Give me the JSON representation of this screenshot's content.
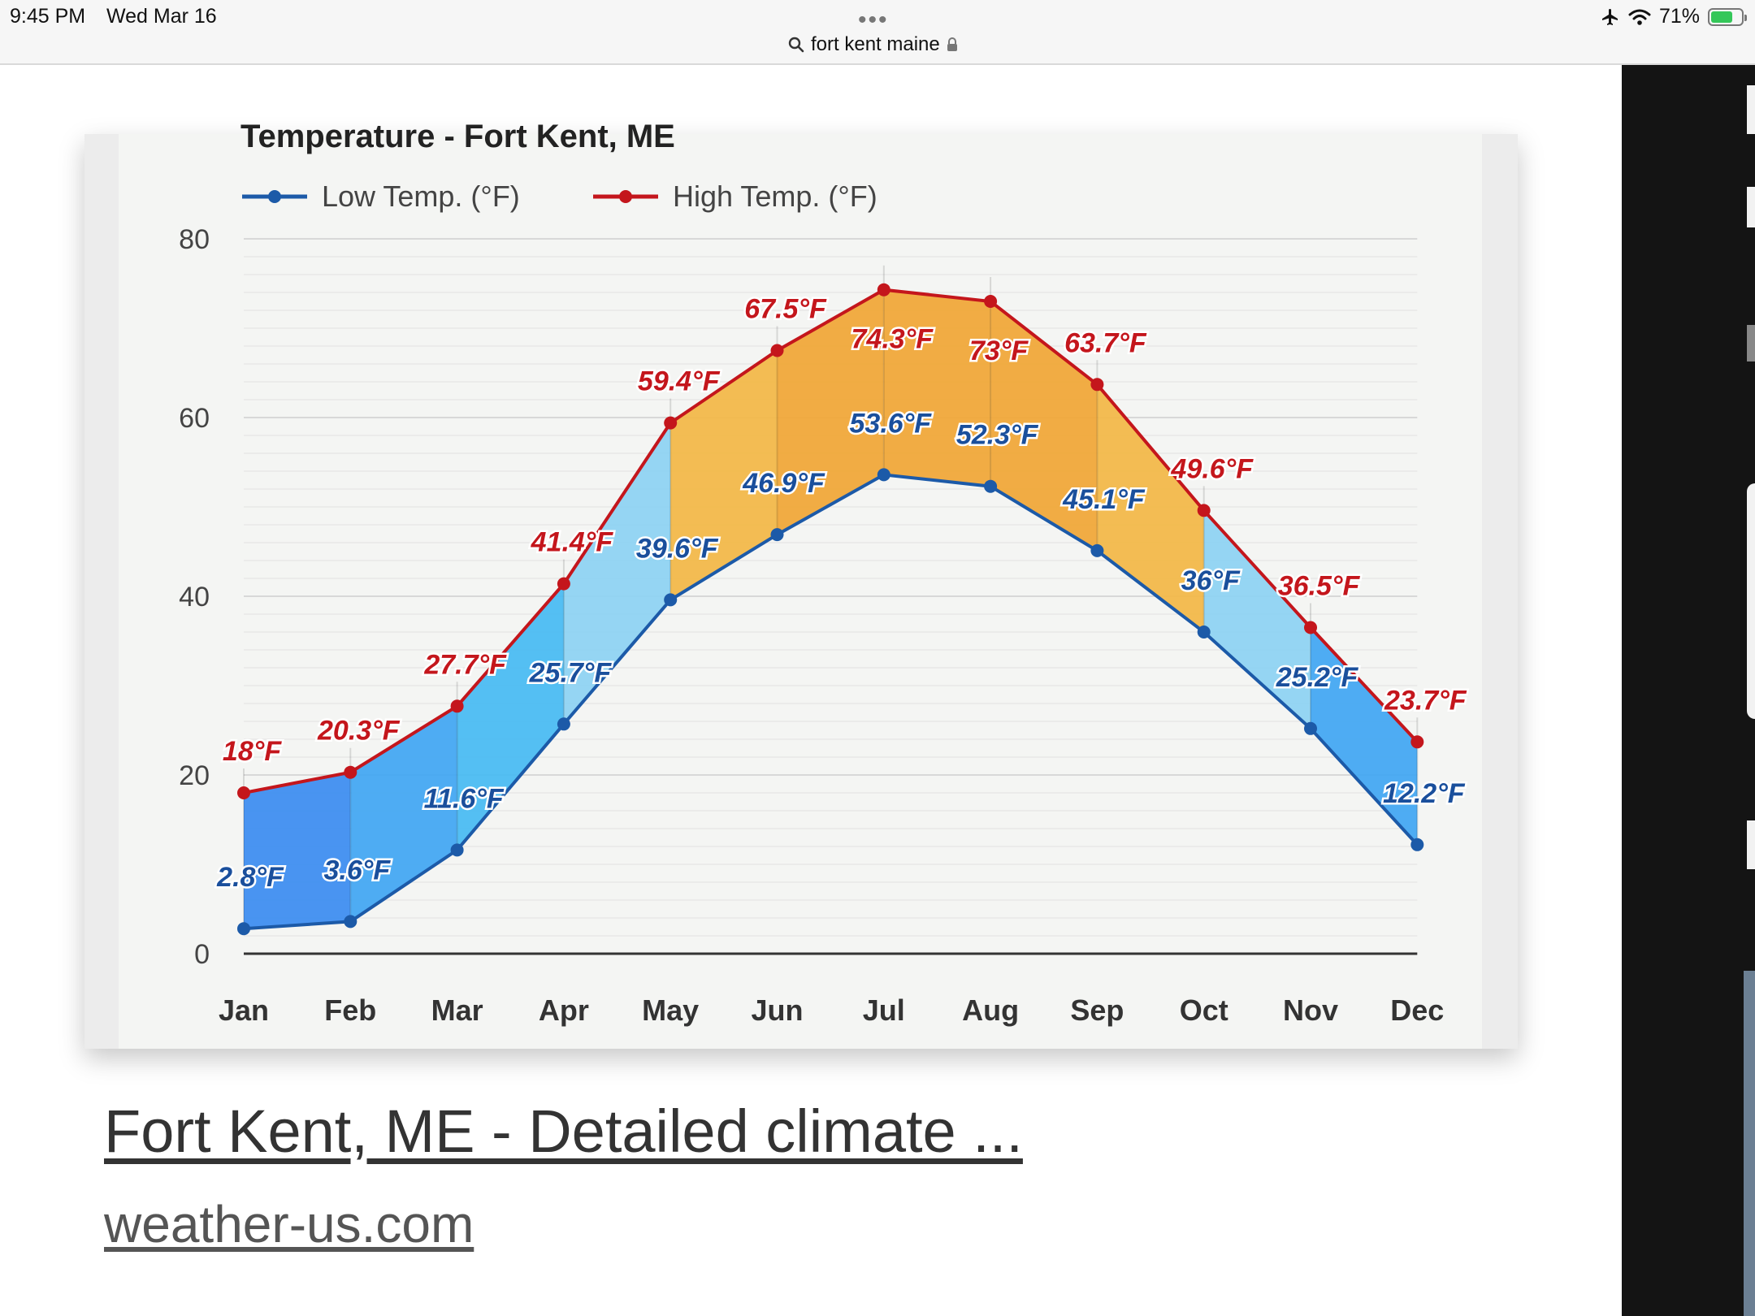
{
  "status_bar": {
    "time": "9:45 PM",
    "date": "Wed Mar 16",
    "url": "fort kent maine",
    "battery": "71%",
    "battery_level": 0.71
  },
  "result": {
    "title": "Fort Kent, ME - Detailed climate ...",
    "source": "weather-us.com"
  },
  "colors": {
    "low_line": "#1c5aa8",
    "high_line": "#c4161c",
    "low_label": "#1a4f9c",
    "high_label": "#c4161c"
  },
  "chart_data": {
    "type": "line",
    "title": "Temperature - Fort Kent, ME",
    "categories": [
      "Jan",
      "Feb",
      "Mar",
      "Apr",
      "May",
      "Jun",
      "Jul",
      "Aug",
      "Sep",
      "Oct",
      "Nov",
      "Dec"
    ],
    "ylim": [
      0,
      80
    ],
    "yticks": [
      "0",
      "20",
      "40",
      "60",
      "80"
    ],
    "grid": true,
    "legend_position": "top-left",
    "series": [
      {
        "name": "Low Temp. (°F)",
        "values": [
          2.8,
          3.6,
          11.6,
          25.7,
          39.6,
          46.9,
          53.6,
          52.3,
          45.1,
          36,
          25.2,
          12.2
        ],
        "labels": [
          "2.8°F",
          "3.6°F",
          "11.6°F",
          "25.7°F",
          "39.6°F",
          "46.9°F",
          "53.6°F",
          "52.3°F",
          "45.1°F",
          "36°F",
          "25.2°F",
          "12.2°F"
        ]
      },
      {
        "name": "High Temp. (°F)",
        "values": [
          18,
          20.3,
          27.7,
          41.4,
          59.4,
          67.5,
          74.3,
          73,
          63.7,
          49.6,
          36.5,
          23.7
        ],
        "labels": [
          "18°F",
          "20.3°F",
          "27.7°F",
          "41.4°F",
          "59.4°F",
          "67.5°F",
          "74.3°F",
          "73°F",
          "63.7°F",
          "49.6°F",
          "36.5°F",
          "23.7°F"
        ]
      }
    ]
  }
}
